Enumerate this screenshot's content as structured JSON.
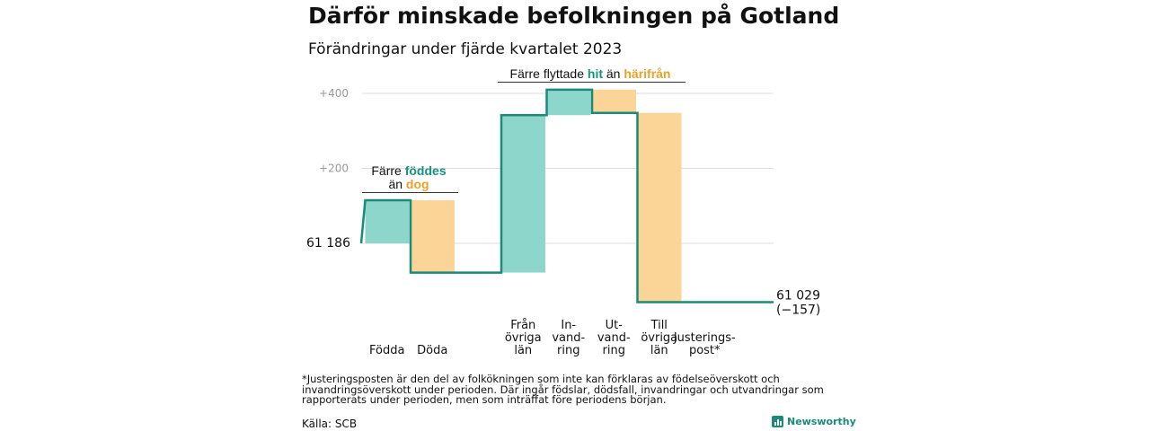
{
  "title": "Därför minskade befolkningen på Gotland",
  "subtitle": "Förändringar under fjärde kvartalet 2023",
  "colors": {
    "in": "#8dd6cb",
    "out": "#fad597",
    "step": "#1a8a7a",
    "grid": "#dddddd",
    "teal_text": "#17927f",
    "orange_text": "#e9a12a"
  },
  "chart_data": {
    "type": "waterfall",
    "start_value": 61186,
    "start_label": "61  186",
    "end_label_line1": "61 029",
    "end_label_line2": "(−157)",
    "yticks": [
      {
        "offset": 400,
        "label": "+400"
      },
      {
        "offset": 200,
        "label": "+200"
      },
      {
        "offset": 0,
        "label": ""
      }
    ],
    "steps": [
      {
        "label_lines": [
          "Födda"
        ],
        "change": 115,
        "kind": "in"
      },
      {
        "label_lines": [
          "Döda"
        ],
        "change": -193,
        "kind": "out"
      },
      {
        "label_lines": [],
        "change": 0,
        "kind": "none"
      },
      {
        "label_lines": [
          "Från",
          "övriga",
          "län"
        ],
        "change": 420,
        "kind": "in"
      },
      {
        "label_lines": [
          "In-",
          "vand-",
          "ring"
        ],
        "change": 68,
        "kind": "in"
      },
      {
        "label_lines": [
          "Ut-",
          "vand-",
          "ring"
        ],
        "change": -62,
        "kind": "out"
      },
      {
        "label_lines": [
          "Till",
          "övriga",
          "län"
        ],
        "change": -505,
        "kind": "out"
      },
      {
        "label_lines": [
          "Justerings-",
          "post*"
        ],
        "change": 0,
        "kind": "none"
      }
    ],
    "annotations": [
      {
        "id": "born",
        "parts": [
          {
            "text": "Färre ",
            "color": "dark"
          },
          {
            "text": "föddes",
            "color": "teal"
          }
        ],
        "parts2": [
          {
            "text": "än ",
            "color": "dark"
          },
          {
            "text": "dog",
            "color": "orange"
          }
        ]
      },
      {
        "id": "moved",
        "parts": [
          {
            "text": "Färre flyttade ",
            "color": "dark"
          },
          {
            "text": "hit",
            "color": "teal"
          },
          {
            "text": " än ",
            "color": "dark"
          },
          {
            "text": "härifrån",
            "color": "orange"
          }
        ]
      }
    ]
  },
  "footnote": "*Justeringsposten är den del av folkökningen som inte kan förklaras av födelseöverskott och invandringsöverskott under perioden. Där ingår födslar, dödsfall, invandringar och utvandringar som rapporterats under perioden, men som inträffat före periodens början.",
  "source": "Källa: SCB",
  "brand": "Newsworthy"
}
